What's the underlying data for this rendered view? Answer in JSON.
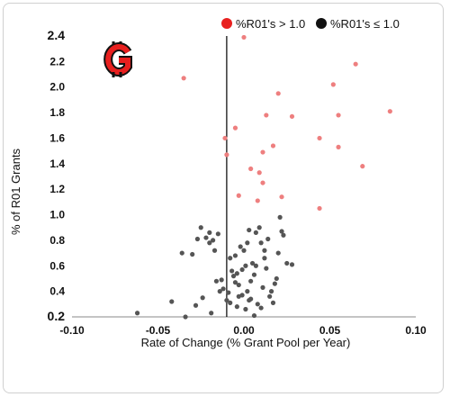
{
  "chart_data": {
    "type": "scatter",
    "title": "",
    "xlabel": "Rate of Change (% Grant Pool per Year)",
    "ylabel": "% of R01 Grants",
    "xlim": [
      -0.1,
      0.1
    ],
    "ylim": [
      0.2,
      2.4
    ],
    "x_ticks": [
      "-0.10",
      "-0.05",
      "0.00",
      "0.05",
      "0.10"
    ],
    "y_ticks": [
      "0.2",
      "0.4",
      "0.6",
      "0.8",
      "1.0",
      "1.2",
      "1.4",
      "1.6",
      "1.8",
      "2.0",
      "2.2",
      "2.4"
    ],
    "reference_line_x": -0.01,
    "legend_position": "top",
    "logo_icon": "G-logo-icon",
    "grid": false,
    "series": [
      {
        "name": "%R01's > 1.0",
        "color": "#ee7f7f",
        "legend_color": "#e8201f",
        "points": [
          [
            0.0,
            2.39
          ],
          [
            -0.035,
            2.07
          ],
          [
            0.065,
            2.18
          ],
          [
            0.052,
            2.02
          ],
          [
            0.02,
            1.95
          ],
          [
            0.085,
            1.81
          ],
          [
            0.013,
            1.78
          ],
          [
            0.028,
            1.77
          ],
          [
            0.055,
            1.78
          ],
          [
            -0.005,
            1.68
          ],
          [
            -0.011,
            1.6
          ],
          [
            0.044,
            1.6
          ],
          [
            0.017,
            1.54
          ],
          [
            0.055,
            1.53
          ],
          [
            0.011,
            1.49
          ],
          [
            -0.01,
            1.47
          ],
          [
            0.069,
            1.38
          ],
          [
            0.004,
            1.36
          ],
          [
            0.009,
            1.33
          ],
          [
            0.011,
            1.25
          ],
          [
            -0.003,
            1.15
          ],
          [
            0.008,
            1.11
          ],
          [
            0.022,
            1.14
          ],
          [
            0.044,
            1.05
          ]
        ]
      },
      {
        "name": "%R01's ≤ 1.0",
        "color": "#555555",
        "legend_color": "#111111",
        "points": [
          [
            -0.062,
            0.23
          ],
          [
            -0.025,
            0.9
          ],
          [
            -0.02,
            0.86
          ],
          [
            -0.018,
            0.8
          ],
          [
            -0.022,
            0.82
          ],
          [
            -0.02,
            0.78
          ],
          [
            -0.017,
            0.72
          ],
          [
            -0.015,
            0.85
          ],
          [
            -0.036,
            0.7
          ],
          [
            -0.042,
            0.32
          ],
          [
            -0.034,
            0.2
          ],
          [
            -0.028,
            0.29
          ],
          [
            -0.024,
            0.35
          ],
          [
            -0.019,
            0.23
          ],
          [
            -0.016,
            0.48
          ],
          [
            -0.014,
            0.4
          ],
          [
            -0.012,
            0.42
          ],
          [
            -0.01,
            0.33
          ],
          [
            -0.008,
            0.31
          ],
          [
            -0.007,
            0.56
          ],
          [
            -0.006,
            0.52
          ],
          [
            -0.005,
            0.47
          ],
          [
            -0.004,
            0.28
          ],
          [
            -0.003,
            0.45
          ],
          [
            -0.002,
            0.75
          ],
          [
            -0.001,
            0.37
          ],
          [
            0.0,
            0.72
          ],
          [
            0.001,
            0.6
          ],
          [
            0.002,
            0.4
          ],
          [
            0.003,
            0.88
          ],
          [
            0.004,
            0.34
          ],
          [
            0.005,
            0.62
          ],
          [
            0.006,
            0.53
          ],
          [
            0.007,
            0.86
          ],
          [
            0.008,
            0.3
          ],
          [
            0.009,
            0.9
          ],
          [
            0.01,
            0.78
          ],
          [
            0.011,
            0.43
          ],
          [
            0.012,
            0.66
          ],
          [
            0.013,
            0.58
          ],
          [
            0.014,
            0.81
          ],
          [
            0.015,
            0.36
          ],
          [
            0.017,
            0.31
          ],
          [
            0.018,
            0.46
          ],
          [
            0.019,
            0.5
          ],
          [
            0.02,
            0.7
          ],
          [
            0.021,
            0.98
          ],
          [
            0.022,
            0.87
          ],
          [
            0.023,
            0.84
          ],
          [
            0.025,
            0.62
          ],
          [
            0.028,
            0.61
          ],
          [
            -0.013,
            0.49
          ],
          [
            -0.008,
            0.66
          ],
          [
            -0.004,
            0.54
          ],
          [
            0.001,
            0.26
          ],
          [
            -0.03,
            0.69
          ],
          [
            -0.027,
            0.81
          ],
          [
            0.006,
            0.21
          ],
          [
            -0.009,
            0.39
          ],
          [
            0.016,
            0.4
          ],
          [
            0.004,
            0.48
          ],
          [
            0.01,
            0.27
          ],
          [
            -0.001,
            0.57
          ],
          [
            0.012,
            0.72
          ],
          [
            0.003,
            0.33
          ],
          [
            -0.005,
            0.68
          ],
          [
            0.007,
            0.6
          ],
          [
            0.002,
            0.78
          ],
          [
            -0.003,
            0.36
          ]
        ]
      }
    ]
  }
}
